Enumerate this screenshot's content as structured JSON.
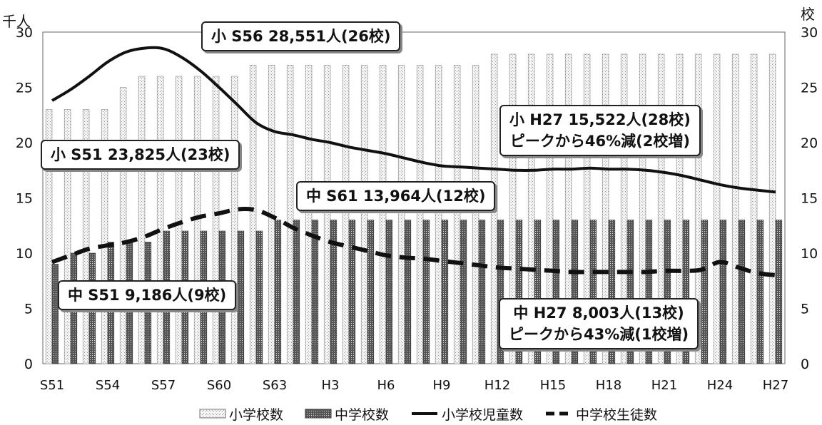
{
  "chart_data": {
    "type": "bar",
    "x": [
      "S51",
      "S52",
      "S53",
      "S54",
      "S55",
      "S56",
      "S57",
      "S58",
      "S59",
      "S60",
      "S61",
      "S62",
      "S63",
      "H1",
      "H2",
      "H3",
      "H4",
      "H5",
      "H6",
      "H7",
      "H8",
      "H9",
      "H10",
      "H11",
      "H12",
      "H13",
      "H14",
      "H15",
      "H16",
      "H17",
      "H18",
      "H19",
      "H20",
      "H21",
      "H22",
      "H23",
      "H24",
      "H25",
      "H26",
      "H27"
    ],
    "x_tick_labels": [
      "S51",
      "S54",
      "S57",
      "S60",
      "S63",
      "H3",
      "H6",
      "H9",
      "H12",
      "H15",
      "H18",
      "H21",
      "H24",
      "H27"
    ],
    "y_left_label": "千人",
    "y_right_label": "校",
    "ylim": [
      0,
      30
    ],
    "yticks": [
      0,
      5,
      10,
      15,
      20,
      25,
      30
    ],
    "grid": false,
    "legend_position": "bottom",
    "series": [
      {
        "name": "小学校数",
        "kind": "bar",
        "axis": "right",
        "values": [
          23,
          23,
          23,
          23,
          25,
          26,
          26,
          26,
          26,
          26,
          26,
          27,
          27,
          27,
          27,
          27,
          27,
          27,
          27,
          27,
          27,
          27,
          27,
          27,
          28,
          28,
          28,
          28,
          28,
          28,
          28,
          28,
          28,
          28,
          28,
          28,
          28,
          28,
          28,
          28
        ]
      },
      {
        "name": "中学校数",
        "kind": "bar",
        "axis": "right",
        "values": [
          9,
          10,
          10,
          11,
          11,
          11,
          12,
          12,
          12,
          12,
          12,
          12,
          13,
          13,
          13,
          13,
          13,
          13,
          13,
          13,
          13,
          13,
          13,
          13,
          13,
          13,
          13,
          13,
          13,
          13,
          13,
          13,
          13,
          13,
          13,
          13,
          13,
          13,
          13,
          13
        ]
      },
      {
        "name": "小学校児童数",
        "kind": "line",
        "axis": "left",
        "values": [
          23.8,
          24.8,
          26.0,
          27.3,
          28.2,
          28.55,
          28.5,
          27.7,
          26.5,
          25.0,
          23.4,
          21.8,
          21.0,
          20.7,
          20.3,
          20.0,
          19.6,
          19.3,
          19.0,
          18.6,
          18.2,
          17.9,
          17.8,
          17.7,
          17.6,
          17.5,
          17.5,
          17.6,
          17.6,
          17.7,
          17.6,
          17.6,
          17.5,
          17.3,
          17.0,
          16.6,
          16.2,
          15.9,
          15.7,
          15.522
        ]
      },
      {
        "name": "中学校生徒数",
        "kind": "line",
        "dashed": true,
        "axis": "left",
        "values": [
          9.186,
          9.8,
          10.4,
          10.7,
          11.0,
          11.5,
          12.2,
          12.8,
          13.3,
          13.6,
          13.964,
          13.9,
          13.2,
          12.3,
          11.6,
          11.0,
          10.6,
          10.2,
          9.8,
          9.6,
          9.5,
          9.3,
          9.1,
          8.9,
          8.7,
          8.6,
          8.5,
          8.4,
          8.3,
          8.3,
          8.3,
          8.3,
          8.3,
          8.4,
          8.4,
          8.5,
          9.2,
          8.7,
          8.2,
          8.003
        ]
      }
    ],
    "annotations": {
      "s56": "小 S56 28,551人(26校)",
      "s51_e": "小 S51 23,825人(23校)",
      "h27_e_line1": "小 H27 15,522人(28校)",
      "h27_e_line2": "ピークから46%減(2校増)",
      "s61": "中 S61 13,964人(12校)",
      "s51_j": "中 S51 9,186人(9校)",
      "h27_j_line1": "中 H27 8,003人(13校)",
      "h27_j_line2": "ピークから43%減(1校増)"
    }
  }
}
